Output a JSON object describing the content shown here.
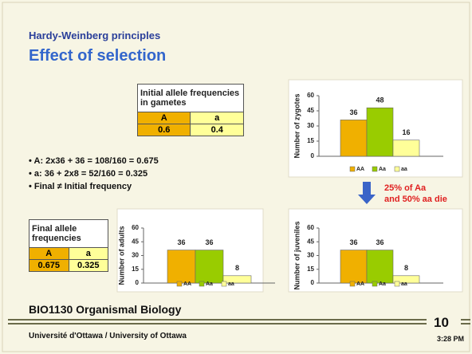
{
  "header": {
    "title": "Hardy-Weinberg principles",
    "subtitle": "Effect of selection"
  },
  "initial_table": {
    "header": "Initial allele frequencies in gametes",
    "alleles": [
      "A",
      "a"
    ],
    "values": [
      0.6,
      0.4
    ]
  },
  "final_table": {
    "header": "Final allele frequencies",
    "alleles": [
      "A",
      "a"
    ],
    "values": [
      0.675,
      0.325
    ]
  },
  "bullets": [
    "• A: 2x36 + 36 = 108/160 = 0.675",
    "• a:  36 + 2x8 = 52/160 = 0.325",
    "• Final ≠ Initial frequency"
  ],
  "annotation": [
    "25% of Aa",
    "and 50% aa die"
  ],
  "chart_data": [
    {
      "type": "bar",
      "y_label": "Number of zygotes",
      "categories": [
        "AA",
        "Aa",
        "aa"
      ],
      "values": [
        36,
        48,
        16
      ],
      "colors": [
        "#f0b000",
        "#99cc00",
        "#ffff99"
      ],
      "ylim": [
        0,
        60
      ],
      "yticks": [
        0,
        15,
        30,
        45,
        60
      ]
    },
    {
      "type": "bar",
      "y_label": "Number of adults",
      "categories": [
        "AA",
        "Aa",
        "aa"
      ],
      "values": [
        36,
        36,
        8
      ],
      "colors": [
        "#f0b000",
        "#99cc00",
        "#ffff99"
      ],
      "ylim": [
        0,
        60
      ],
      "yticks": [
        0,
        15,
        30,
        45,
        60
      ]
    },
    {
      "type": "bar",
      "y_label": "Number of juveniles",
      "categories": [
        "AA",
        "Aa",
        "aa"
      ],
      "values": [
        36,
        36,
        8
      ],
      "colors": [
        "#f0b000",
        "#99cc00",
        "#ffff99"
      ],
      "ylim": [
        0,
        60
      ],
      "yticks": [
        0,
        15,
        30,
        45,
        60
      ]
    }
  ],
  "footer": {
    "course": "BIO1130 Organismal Biology",
    "university": "Université d'Ottawa / University of Ottawa",
    "page": "10",
    "time": "3:28 PM"
  }
}
